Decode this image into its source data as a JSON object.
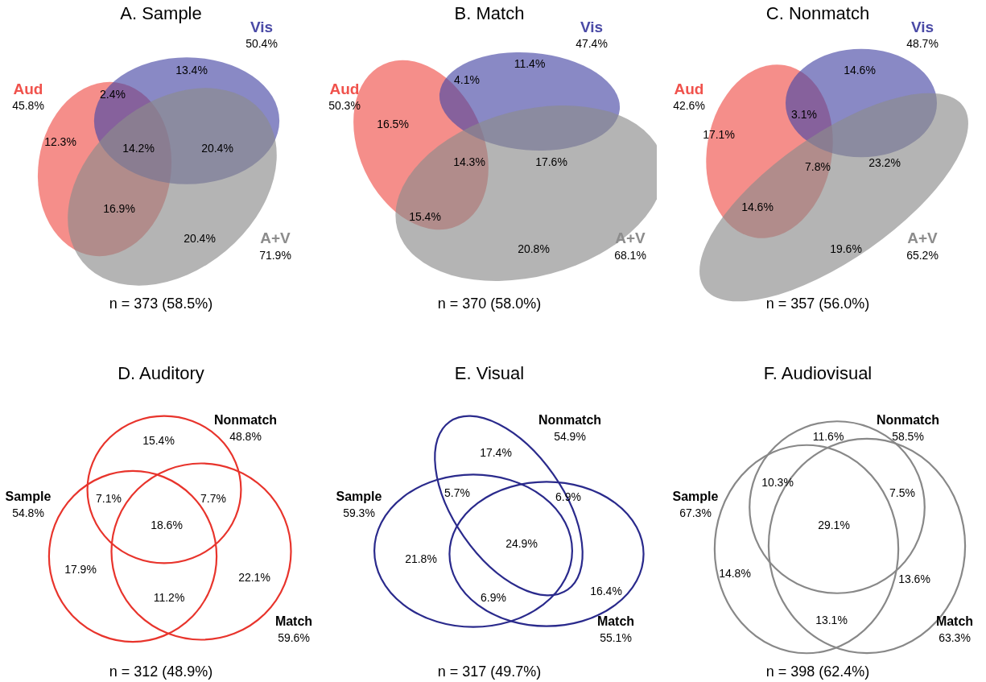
{
  "chart_data": [
    {
      "type": "other",
      "title": "A. Sample",
      "categories": [
        "Aud",
        "Vis",
        "A+V"
      ],
      "values": [
        45.8,
        50.4,
        71.9
      ],
      "value_labels": [
        "45.8%",
        "50.4%",
        "71.9%"
      ],
      "colors": [
        "#f0524c",
        "#4a4aa6",
        "#8c8c8c"
      ],
      "annotations": [
        "13.4%",
        "2.4%",
        "12.3%",
        "14.2%",
        "20.4%",
        "16.9%",
        "20.4%",
        "n = 373 (58.5%)"
      ]
    },
    {
      "type": "other",
      "title": "B. Match",
      "categories": [
        "Aud",
        "Vis",
        "A+V"
      ],
      "values": [
        50.3,
        47.4,
        68.1
      ],
      "value_labels": [
        "50.3%",
        "47.4%",
        "68.1%"
      ],
      "colors": [
        "#f0524c",
        "#4a4aa6",
        "#8c8c8c"
      ],
      "annotations": [
        "11.4%",
        "4.1%",
        "16.5%",
        "14.3%",
        "17.6%",
        "15.4%",
        "20.8%",
        "n = 370 (58.0%)"
      ]
    },
    {
      "type": "other",
      "title": "C. Nonmatch",
      "categories": [
        "Aud",
        "Vis",
        "A+V"
      ],
      "values": [
        42.6,
        48.7,
        65.2
      ],
      "value_labels": [
        "42.6%",
        "48.7%",
        "65.2%"
      ],
      "colors": [
        "#f0524c",
        "#4a4aa6",
        "#8c8c8c"
      ],
      "annotations": [
        "14.6%",
        "3.1%",
        "17.1%",
        "7.8%",
        "23.2%",
        "14.6%",
        "19.6%",
        "n = 357 (56.0%)"
      ]
    },
    {
      "type": "other",
      "title": "D. Auditory",
      "categories": [
        "Sample",
        "Nonmatch",
        "Match"
      ],
      "values": [
        54.8,
        48.8,
        59.6
      ],
      "value_labels": [
        "54.8%",
        "48.8%",
        "59.6%"
      ],
      "colors": [
        "#e8342c",
        "#e8342c",
        "#e8342c"
      ],
      "annotations": [
        "15.4%",
        "7.1%",
        "7.7%",
        "18.6%",
        "17.9%",
        "22.1%",
        "11.2%",
        "n = 312 (48.9%)"
      ]
    },
    {
      "type": "other",
      "title": "E. Visual",
      "categories": [
        "Sample",
        "Nonmatch",
        "Match"
      ],
      "values": [
        59.3,
        54.9,
        55.1
      ],
      "value_labels": [
        "59.3%",
        "54.9%",
        "55.1%"
      ],
      "colors": [
        "#2a2a8c",
        "#2a2a8c",
        "#2a2a8c"
      ],
      "annotations": [
        "17.4%",
        "5.7%",
        "6.9%",
        "24.9%",
        "21.8%",
        "16.4%",
        "6.9%",
        "n = 317 (49.7%)"
      ]
    },
    {
      "type": "other",
      "title": "F. Audiovisual",
      "categories": [
        "Sample",
        "Nonmatch",
        "Match"
      ],
      "values": [
        67.3,
        58.5,
        63.3
      ],
      "value_labels": [
        "67.3%",
        "58.5%",
        "63.3%"
      ],
      "colors": [
        "#888888",
        "#888888",
        "#888888"
      ],
      "annotations": [
        "11.6%",
        "10.3%",
        "7.5%",
        "29.1%",
        "14.8%",
        "13.6%",
        "13.1%",
        "n = 398 (62.4%)"
      ]
    }
  ]
}
